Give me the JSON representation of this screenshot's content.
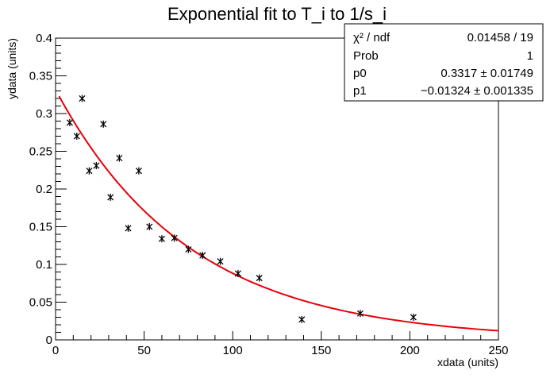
{
  "chart_data": {
    "type": "scatter",
    "title": "Exponential fit to T_i to 1/s_i",
    "xlabel": "xdata (units)",
    "ylabel": "ydata (units)",
    "xlim": [
      0,
      250
    ],
    "ylim": [
      0,
      0.4
    ],
    "x_ticks": [
      0,
      50,
      100,
      150,
      200,
      250
    ],
    "x_tick_labels": [
      "0",
      "50",
      "100",
      "150",
      "200",
      "250"
    ],
    "y_ticks": [
      0,
      0.05,
      0.1,
      0.15,
      0.2,
      0.25,
      0.3,
      0.35,
      0.4
    ],
    "y_tick_labels": [
      "0",
      "0.05",
      "0.1",
      "0.15",
      "0.2",
      "0.25",
      "0.3",
      "0.35",
      "0.4"
    ],
    "grid": false,
    "series": [
      {
        "marker": "asterisk",
        "color": "#000000",
        "x": [
          8,
          12,
          15,
          19,
          23,
          27,
          31,
          36,
          41,
          47,
          53,
          60,
          67,
          75,
          83,
          93,
          103,
          115,
          139,
          172,
          202
        ],
        "y": [
          0.288,
          0.27,
          0.32,
          0.224,
          0.231,
          0.286,
          0.189,
          0.241,
          0.148,
          0.224,
          0.15,
          0.134,
          0.135,
          0.12,
          0.112,
          0.104,
          0.088,
          0.082,
          0.027,
          0.035,
          0.03
        ]
      }
    ],
    "fit": {
      "function": "exp(p0 + p1*x)",
      "color": "#e8000b",
      "x_range": [
        2,
        250
      ],
      "a": 0.3317,
      "b": -0.01324
    },
    "stats_box": {
      "rows": [
        {
          "label": "χ² / ndf",
          "value": "0.01458 / 19"
        },
        {
          "label": "Prob",
          "value": "1"
        },
        {
          "label": "p0",
          "value": "0.3317 ± 0.01749"
        },
        {
          "label": "p1",
          "value": "−0.01324 ± 0.001335"
        }
      ]
    }
  }
}
